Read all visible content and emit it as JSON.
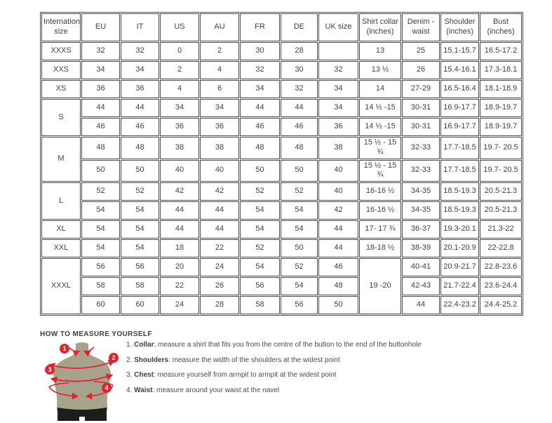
{
  "table": {
    "columns": [
      "International size",
      "EU",
      "IT",
      "US",
      "AU",
      "FR",
      "DE",
      "UK size",
      "Shirt collar (inches)",
      "Denim - waist",
      "Shoulder (inches)",
      "Bust (inches)"
    ],
    "groups": [
      {
        "size": "XXXS",
        "rows": [
          [
            "32",
            "32",
            "0",
            "2",
            "30",
            "28",
            "",
            "13",
            "25",
            "15.1-15.7",
            "16.5-17.2"
          ]
        ]
      },
      {
        "size": "XXS",
        "rows": [
          [
            "34",
            "34",
            "2",
            "4",
            "32",
            "30",
            "32",
            "13 ½",
            "26",
            "15.4-16.1",
            "17.3-18.1"
          ]
        ]
      },
      {
        "size": "XS",
        "rows": [
          [
            "36",
            "36",
            "4",
            "6",
            "34",
            "32",
            "34",
            "14",
            "27-29",
            "16.5-16.4",
            "18.1-18.9"
          ]
        ]
      },
      {
        "size": "S",
        "rows": [
          [
            "44",
            "44",
            "34",
            "34",
            "44",
            "44",
            "34",
            "14 ½ -15",
            "30-31",
            "16.9-17.7",
            "18.9-19.7"
          ],
          [
            "46",
            "46",
            "36",
            "36",
            "46",
            "46",
            "36",
            "14 ½ -15",
            "30-31",
            "16.9-17.7",
            "18.9-19.7"
          ]
        ]
      },
      {
        "size": "M",
        "rows": [
          [
            "48",
            "48",
            "38",
            "38",
            "48",
            "48",
            "38",
            "15 ½ - 15 ¾",
            "32-33",
            "17.7-18.5",
            "19.7- 20.5"
          ],
          [
            "50",
            "50",
            "40",
            "40",
            "50",
            "50",
            "40",
            "15 ½ - 15 ¾",
            "32-33",
            "17.7-18.5",
            "19.7- 20.5"
          ]
        ]
      },
      {
        "size": "L",
        "rows": [
          [
            "52",
            "52",
            "42",
            "42",
            "52",
            "52",
            "40",
            "16-16 ½",
            "34-35",
            "18.5-19.3",
            "20.5-21.3"
          ],
          [
            "54",
            "54",
            "44",
            "44",
            "54",
            "54",
            "42",
            "16-16 ½",
            "34-35",
            "18.5-19.3",
            "20.5-21.3"
          ]
        ]
      },
      {
        "size": "XL",
        "rows": [
          [
            "54",
            "54",
            "44",
            "44",
            "54",
            "54",
            "44",
            "17- 17 ¾",
            "36-37",
            "19.3-20.1",
            "21.3-22"
          ]
        ]
      },
      {
        "size": "XXL",
        "rows": [
          [
            "54",
            "54",
            "18",
            "22",
            "52",
            "50",
            "44",
            "18-18 ½",
            "38-39",
            "20.1-20.9",
            "22-22.8"
          ]
        ]
      },
      {
        "size": "XXXL",
        "collar_merged": "19 -20",
        "rows": [
          [
            "56",
            "56",
            "20",
            "24",
            "54",
            "52",
            "46",
            "40-41",
            "20.9-21.7",
            "22.8-23.6"
          ],
          [
            "58",
            "58",
            "22",
            "26",
            "56",
            "54",
            "48",
            "42-43",
            "21.7-22.4",
            "23.6-24.4"
          ],
          [
            "60",
            "60",
            "24",
            "28",
            "58",
            "56",
            "50",
            "44",
            "22.4-23.2",
            "24.4-25.2"
          ]
        ]
      }
    ]
  },
  "measure": {
    "title": "HOW TO MEASURE YOURSELF",
    "items": [
      {
        "num": "1.",
        "label": "Collar",
        "rest": ": measure a shirt that fits you from the centre of the button to the end of the buttonhole"
      },
      {
        "num": "2.",
        "label": "Shoulders",
        "rest": ": measure the width of the shoulders at the widest point"
      },
      {
        "num": "3.",
        "label": "Chest",
        "rest": ": measure yourself from armpit to armpit at the widest point"
      },
      {
        "num": "4.",
        "label": "Waist",
        "rest": ": measure around your waist at the navel"
      }
    ],
    "markers": [
      "1",
      "2",
      "3",
      "4"
    ]
  },
  "colors": {
    "accent_red": "#e32230",
    "mannequin_body": "#a6a28c",
    "mannequin_shorts": "#1d1d1b",
    "table_border": "#4b4b4d",
    "text": "#414042"
  }
}
